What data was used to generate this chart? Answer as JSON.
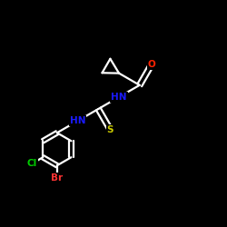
{
  "bg_color": "#000000",
  "bond_color": "#ffffff",
  "atom_colors": {
    "N": "#1a1aff",
    "O": "#ff2200",
    "S": "#cccc00",
    "Cl": "#00cc00",
    "Br": "#ff3333",
    "C": "#ffffff"
  },
  "figsize": [
    2.5,
    2.5
  ],
  "dpi": 100,
  "bond_lw": 1.6,
  "font_size": 7.5
}
